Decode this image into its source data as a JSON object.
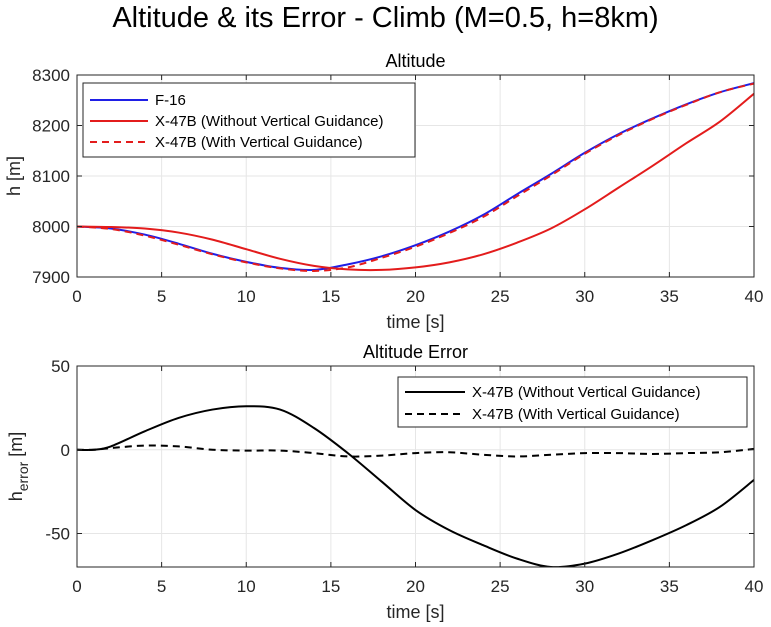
{
  "figure_title": "Altitude & its Error - Climb (M=0.5, h=8km)",
  "colors": {
    "blue": "#1f1fe6",
    "red": "#e31c1c",
    "black": "#000000",
    "grid": "#e6e6e6",
    "axis": "#262626"
  },
  "chart_data": [
    {
      "type": "line",
      "title": "Altitude",
      "xlabel": "time [s]",
      "ylabel": "h [m]",
      "xlim": [
        0,
        40
      ],
      "ylim": [
        7900,
        8300
      ],
      "xticks": [
        0,
        5,
        10,
        15,
        20,
        25,
        30,
        35,
        40
      ],
      "yticks": [
        7900,
        8000,
        8100,
        8200,
        8300
      ],
      "grid": true,
      "legend_position": "top-left",
      "x": [
        0,
        2,
        4,
        6,
        8,
        10,
        12,
        14,
        16,
        18,
        20,
        22,
        24,
        26,
        28,
        30,
        32,
        34,
        36,
        38,
        40
      ],
      "series": [
        {
          "name": "F-16",
          "color": "#1f1fe6",
          "dash": "solid",
          "values": [
            8000,
            7996,
            7984,
            7966,
            7946,
            7930,
            7918,
            7914,
            7925,
            7941,
            7963,
            7990,
            8023,
            8064,
            8104,
            8146,
            8183,
            8214,
            8242,
            8266,
            8284
          ]
        },
        {
          "name": "X-47B (Without Vertical Guidance)",
          "color": "#e31c1c",
          "dash": "solid",
          "values": [
            8000,
            7999,
            7996,
            7988,
            7974,
            7955,
            7936,
            7922,
            7915,
            7914,
            7919,
            7929,
            7945,
            7968,
            7996,
            8034,
            8077,
            8120,
            8165,
            8208,
            8263
          ]
        },
        {
          "name": "X-47B (With Vertical Guidance)",
          "color": "#e31c1c",
          "dash": "dashed",
          "values": [
            8000,
            7995,
            7982,
            7964,
            7945,
            7929,
            7917,
            7912,
            7919,
            7938,
            7960,
            7987,
            8019,
            8060,
            8101,
            8144,
            8181,
            8213,
            8241,
            8266,
            8283
          ]
        }
      ]
    },
    {
      "type": "line",
      "title": "Altitude Error",
      "xlabel": "time [s]",
      "ylabel": "h",
      "ylabel_subscript": "error",
      "ylabel_unit": " [m]",
      "xlim": [
        0,
        40
      ],
      "ylim": [
        -70,
        50
      ],
      "xticks": [
        0,
        5,
        10,
        15,
        20,
        25,
        30,
        35,
        40
      ],
      "yticks": [
        -50,
        0,
        50
      ],
      "grid": true,
      "legend_position": "top-right",
      "x": [
        0,
        1,
        2,
        4,
        6,
        8,
        10,
        12,
        14,
        16,
        18,
        20,
        22,
        24,
        26,
        28,
        30,
        32,
        34,
        36,
        38,
        40
      ],
      "series": [
        {
          "name": "X-47B (Without Vertical Guidance)",
          "color": "#000000",
          "dash": "solid",
          "values": [
            0,
            0,
            2,
            11,
            19,
            24,
            26,
            24,
            13,
            -2,
            -19,
            -36,
            -48,
            -57,
            -65,
            -70,
            -68,
            -62,
            -54,
            -45,
            -34,
            -18
          ]
        },
        {
          "name": "X-47B (With Vertical Guidance)",
          "color": "#000000",
          "dash": "dashed",
          "values": [
            0,
            0,
            1,
            2.5,
            2,
            0,
            -0.5,
            -0.5,
            -2,
            -4,
            -3.5,
            -2,
            -1.5,
            -3,
            -4,
            -3,
            -2,
            -2,
            -2.5,
            -2,
            -1.5,
            0.5
          ]
        }
      ]
    }
  ]
}
